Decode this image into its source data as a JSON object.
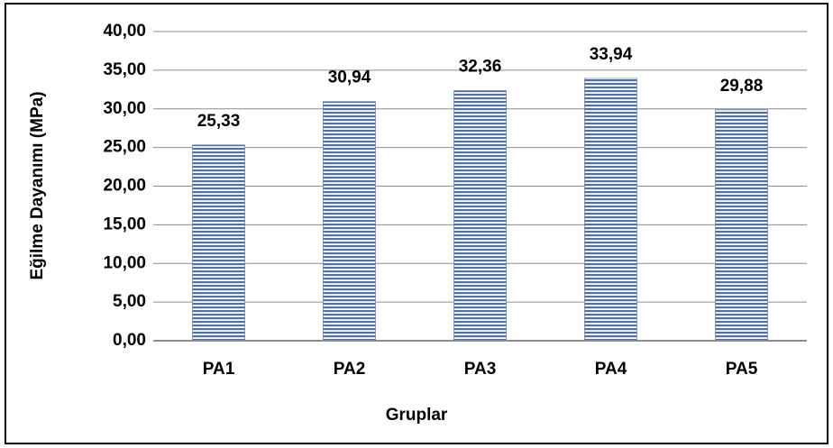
{
  "chart_data": {
    "type": "bar",
    "x_label": "Gruplar",
    "y_label": "Eğilme Dayanımı (MPa)",
    "categories": [
      "PA1",
      "PA2",
      "PA3",
      "PA4",
      "PA5"
    ],
    "values": [
      25.33,
      30.94,
      32.36,
      33.94,
      29.88
    ],
    "value_labels": [
      "25,33",
      "30,94",
      "32,36",
      "33,94",
      "29,88"
    ],
    "color": "#4f6fa8",
    "ylim": [
      0,
      40
    ],
    "yticks": [
      {
        "value": 0,
        "label": "0,00"
      },
      {
        "value": 5,
        "label": "5,00"
      },
      {
        "value": 10,
        "label": "10,00"
      },
      {
        "value": 15,
        "label": "15,00"
      },
      {
        "value": 20,
        "label": "20,00"
      },
      {
        "value": 25,
        "label": "25,00"
      },
      {
        "value": 30,
        "label": "30,00"
      },
      {
        "value": 35,
        "label": "35,00"
      },
      {
        "value": 40,
        "label": "40,00"
      }
    ],
    "grid": true
  }
}
